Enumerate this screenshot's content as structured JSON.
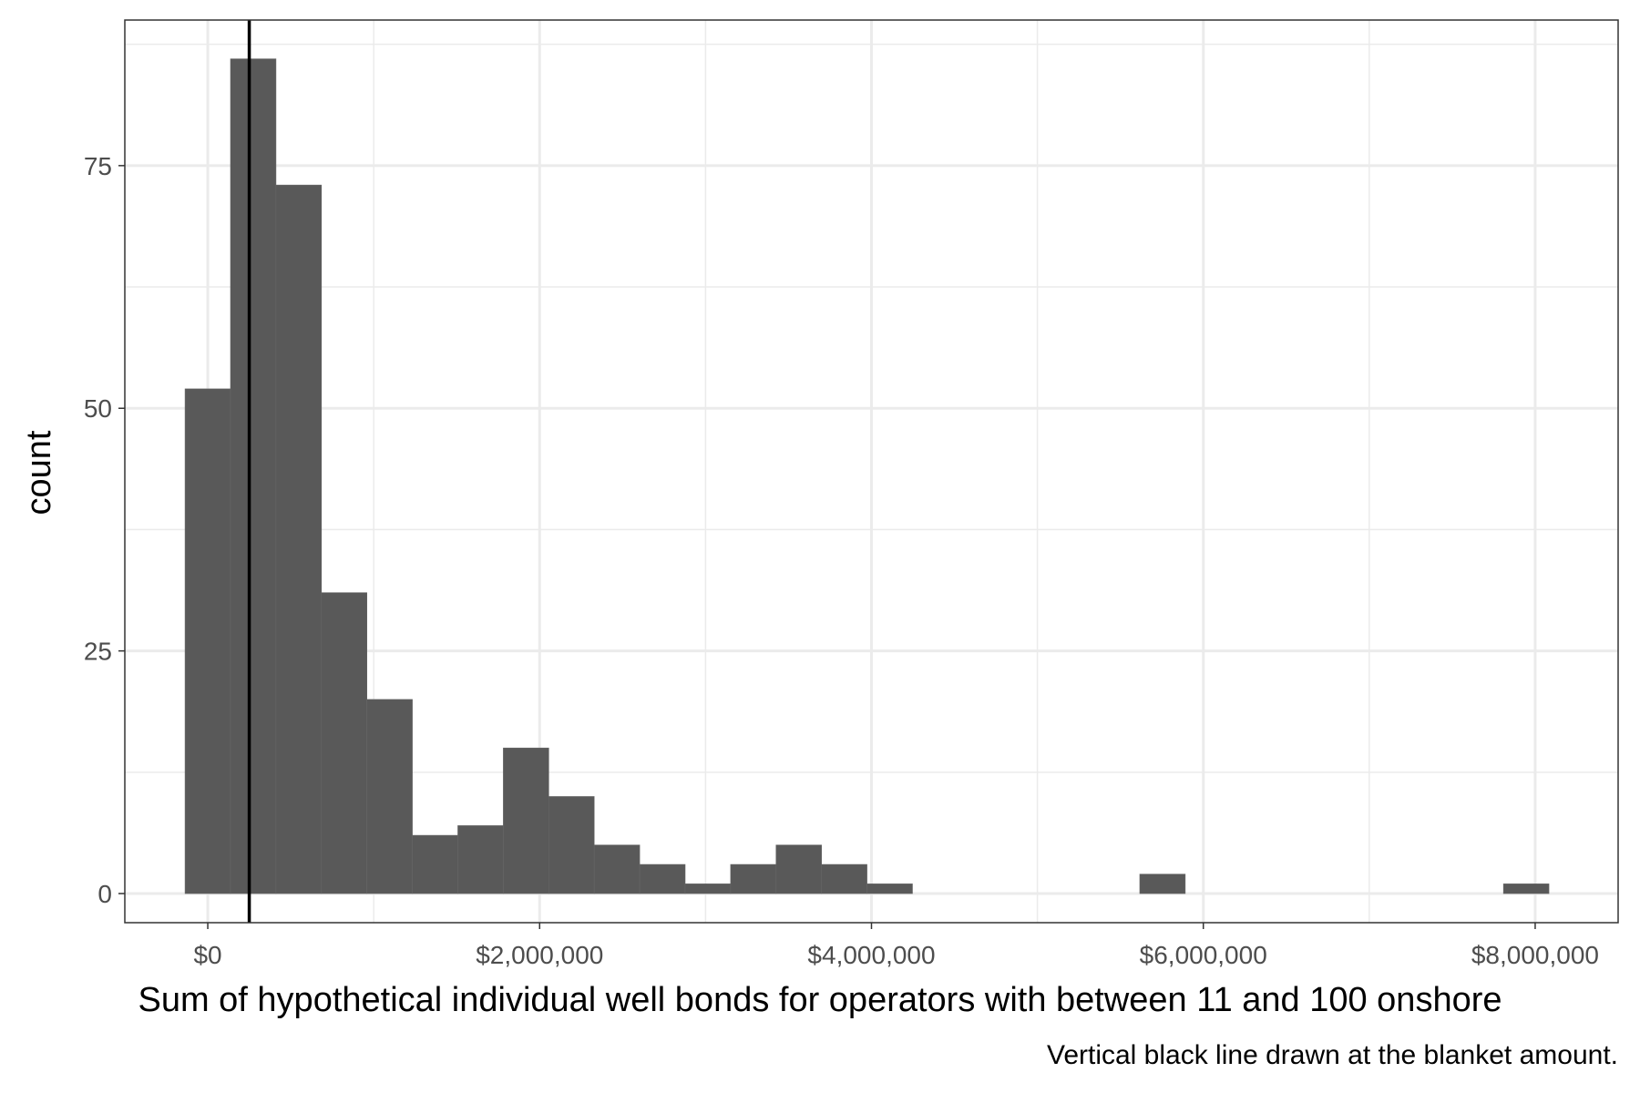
{
  "chart_data": {
    "type": "bar",
    "subtype": "histogram",
    "xlabel": "Sum of hypothetical individual well bonds for operators with between 11 and 100 onshore",
    "ylabel": "count",
    "caption": "Vertical black line drawn at the blanket amount.",
    "xlim": [
      -500000,
      8500000
    ],
    "ylim": [
      -3,
      90
    ],
    "x_ticks": [
      {
        "value": 0,
        "label": "$0"
      },
      {
        "value": 2000000,
        "label": "$2,000,000"
      },
      {
        "value": 4000000,
        "label": "$4,000,000"
      },
      {
        "value": 6000000,
        "label": "$6,000,000"
      },
      {
        "value": 8000000,
        "label": "$8,000,000"
      }
    ],
    "x_minor": [
      1000000,
      3000000,
      5000000,
      7000000
    ],
    "y_ticks": [
      {
        "value": 0,
        "label": "0"
      },
      {
        "value": 25,
        "label": "25"
      },
      {
        "value": 50,
        "label": "50"
      },
      {
        "value": 75,
        "label": "75"
      }
    ],
    "y_minor": [
      12.5,
      37.5,
      62.5,
      87.5
    ],
    "bins": [
      {
        "x0": -137000,
        "x1": 137000,
        "count": 52
      },
      {
        "x0": 137000,
        "x1": 411000,
        "count": 86
      },
      {
        "x0": 411000,
        "x1": 685000,
        "count": 73
      },
      {
        "x0": 685000,
        "x1": 959000,
        "count": 31
      },
      {
        "x0": 959000,
        "x1": 1233000,
        "count": 20
      },
      {
        "x0": 1233000,
        "x1": 1507000,
        "count": 6
      },
      {
        "x0": 1507000,
        "x1": 1781000,
        "count": 7
      },
      {
        "x0": 1781000,
        "x1": 2055000,
        "count": 15
      },
      {
        "x0": 2055000,
        "x1": 2329000,
        "count": 10
      },
      {
        "x0": 2329000,
        "x1": 2603000,
        "count": 5
      },
      {
        "x0": 2603000,
        "x1": 2877000,
        "count": 3
      },
      {
        "x0": 2877000,
        "x1": 3151000,
        "count": 1
      },
      {
        "x0": 3151000,
        "x1": 3425000,
        "count": 3
      },
      {
        "x0": 3425000,
        "x1": 3699000,
        "count": 5
      },
      {
        "x0": 3699000,
        "x1": 3973000,
        "count": 3
      },
      {
        "x0": 3973000,
        "x1": 4247000,
        "count": 1
      },
      {
        "x0": 5617000,
        "x1": 5891000,
        "count": 2
      },
      {
        "x0": 7809000,
        "x1": 8083000,
        "count": 1
      }
    ],
    "reference_line": {
      "x": 250000,
      "color": "#000000"
    },
    "bar_color": "#595959",
    "grid": true,
    "legend": "none"
  }
}
